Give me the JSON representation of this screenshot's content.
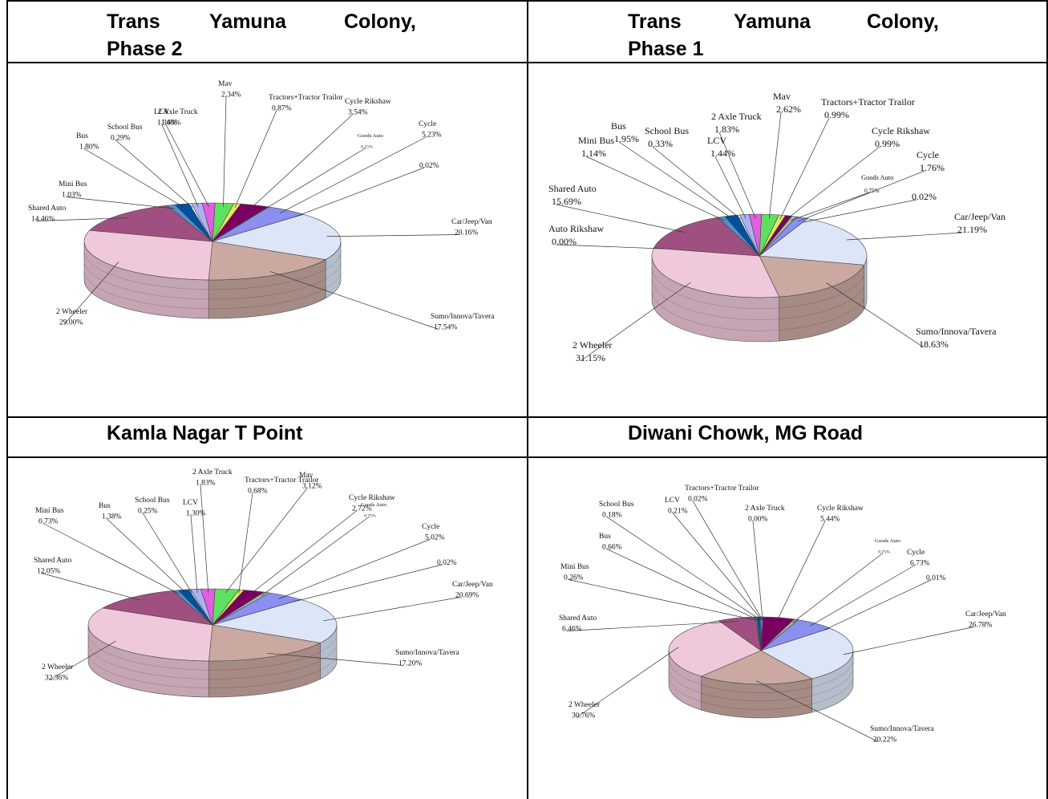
{
  "panels": [
    {
      "header_line1": [
        "Trans",
        "Yamuna",
        "Colony,"
      ],
      "header_line2": "Phase 2"
    },
    {
      "header_line1": [
        "Trans",
        "Yamuna",
        "Colony,"
      ],
      "header_line2": "Phase 1"
    },
    {
      "header": "Kamla Nagar T Point"
    },
    {
      "header": "Diwani Chowk, MG Road"
    }
  ],
  "chart_data": [
    {
      "type": "pie",
      "title": "Trans Yamuna Colony, Phase 2",
      "slices": [
        {
          "label": "Mav",
          "value": "2.34%"
        },
        {
          "label": "Tractors+Tractor Trailor",
          "value": "0.87%"
        },
        {
          "label": "Cycle Rikshaw",
          "value": "3.54%"
        },
        {
          "label": "Goods Auto",
          "value": "0.15%"
        },
        {
          "label": "Cycle",
          "value": "5.23%"
        },
        {
          "label": "",
          "value": "0.02%"
        },
        {
          "label": "Car/Jeep/Van",
          "value": "20.16%"
        },
        {
          "label": "Sumo/Innova/Tavera",
          "value": "17.54%"
        },
        {
          "label": "2 Wheeler",
          "value": "29.00%"
        },
        {
          "label": "Shared Auto",
          "value": "14.46%"
        },
        {
          "label": "Mini Bus",
          "value": "1.03%"
        },
        {
          "label": "Bus",
          "value": "1.80%"
        },
        {
          "label": "School Bus",
          "value": "0.29%"
        },
        {
          "label": "LCV",
          "value": "1.34%"
        },
        {
          "label": "2 Axle Truck",
          "value": "1.60%"
        }
      ]
    },
    {
      "type": "pie",
      "title": "Trans Yamuna Colony, Phase 1",
      "slices": [
        {
          "label": "Mav",
          "value": "2.62%"
        },
        {
          "label": "Tractors+Tractor Trailor",
          "value": "0.99%"
        },
        {
          "label": "Cycle Rikshaw",
          "value": "0.99%"
        },
        {
          "label": "Goods Auto",
          "value": "0.75%"
        },
        {
          "label": "Cycle",
          "value": "1.76%"
        },
        {
          "label": "",
          "value": "0.02%"
        },
        {
          "label": "Car/Jeep/Van",
          "value": "21.19%"
        },
        {
          "label": "Sumo/Innova/Tavera",
          "value": "18.63%"
        },
        {
          "label": "2 Wheeler",
          "value": "31.15%"
        },
        {
          "label": "Auto Rikshaw",
          "value": "0.00%"
        },
        {
          "label": "Shared Auto",
          "value": "15.69%"
        },
        {
          "label": "Mini Bus",
          "value": "1.14%"
        },
        {
          "label": "Bus",
          "value": "1.95%"
        },
        {
          "label": "School Bus",
          "value": "0.33%"
        },
        {
          "label": "LCV",
          "value": "1.44%"
        },
        {
          "label": "2 Axle Truck",
          "value": "1.83%"
        }
      ]
    },
    {
      "type": "pie",
      "title": "Kamla Nagar T Point",
      "slices": [
        {
          "label": "Mav",
          "value": "3.12%"
        },
        {
          "label": "Tractors+Tractor Trailor",
          "value": "0.68%"
        },
        {
          "label": "Cycle Rikshaw",
          "value": "2.72%"
        },
        {
          "label": "Goods Auto",
          "value": "0.75%"
        },
        {
          "label": "Cycle",
          "value": "5.02%"
        },
        {
          "label": "",
          "value": "0.02%"
        },
        {
          "label": "Car/Jeep/Van",
          "value": "20.69%"
        },
        {
          "label": "Sumo/Innova/Tavera",
          "value": "17.20%"
        },
        {
          "label": "2 Wheeler",
          "value": "32.36%"
        },
        {
          "label": "Shared Auto",
          "value": "12.05%"
        },
        {
          "label": "Mini Bus",
          "value": "0.73%"
        },
        {
          "label": "Bus",
          "value": "1.38%"
        },
        {
          "label": "School Bus",
          "value": "0.25%"
        },
        {
          "label": "LCV",
          "value": "1.30%"
        },
        {
          "label": "2 Axle Truck",
          "value": "1.83%"
        }
      ]
    },
    {
      "type": "pie",
      "title": "Diwani Chowk, MG Road",
      "slices": [
        {
          "label": "Tractors+Tractor Trailor",
          "value": "0.02%"
        },
        {
          "label": "2 Axle Truck",
          "value": "0.00%"
        },
        {
          "label": "Cycle Rikshaw",
          "value": "5.44%"
        },
        {
          "label": "Goods Auto",
          "value": "0.75%"
        },
        {
          "label": "Cycle",
          "value": "6.73%"
        },
        {
          "label": "",
          "value": "0.01%"
        },
        {
          "label": "Car/Jeep/Van",
          "value": "26.78%"
        },
        {
          "label": "Sumo/Innova/Tavera",
          "value": "20.22%"
        },
        {
          "label": "2 Wheeler",
          "value": "30.76%"
        },
        {
          "label": "Shared Auto",
          "value": "6.46%"
        },
        {
          "label": "Mini Bus",
          "value": "0.26%"
        },
        {
          "label": "Bus",
          "value": "0.66%"
        },
        {
          "label": "School Bus",
          "value": "0.18%"
        },
        {
          "label": "LCV",
          "value": "0.21%"
        }
      ]
    }
  ]
}
